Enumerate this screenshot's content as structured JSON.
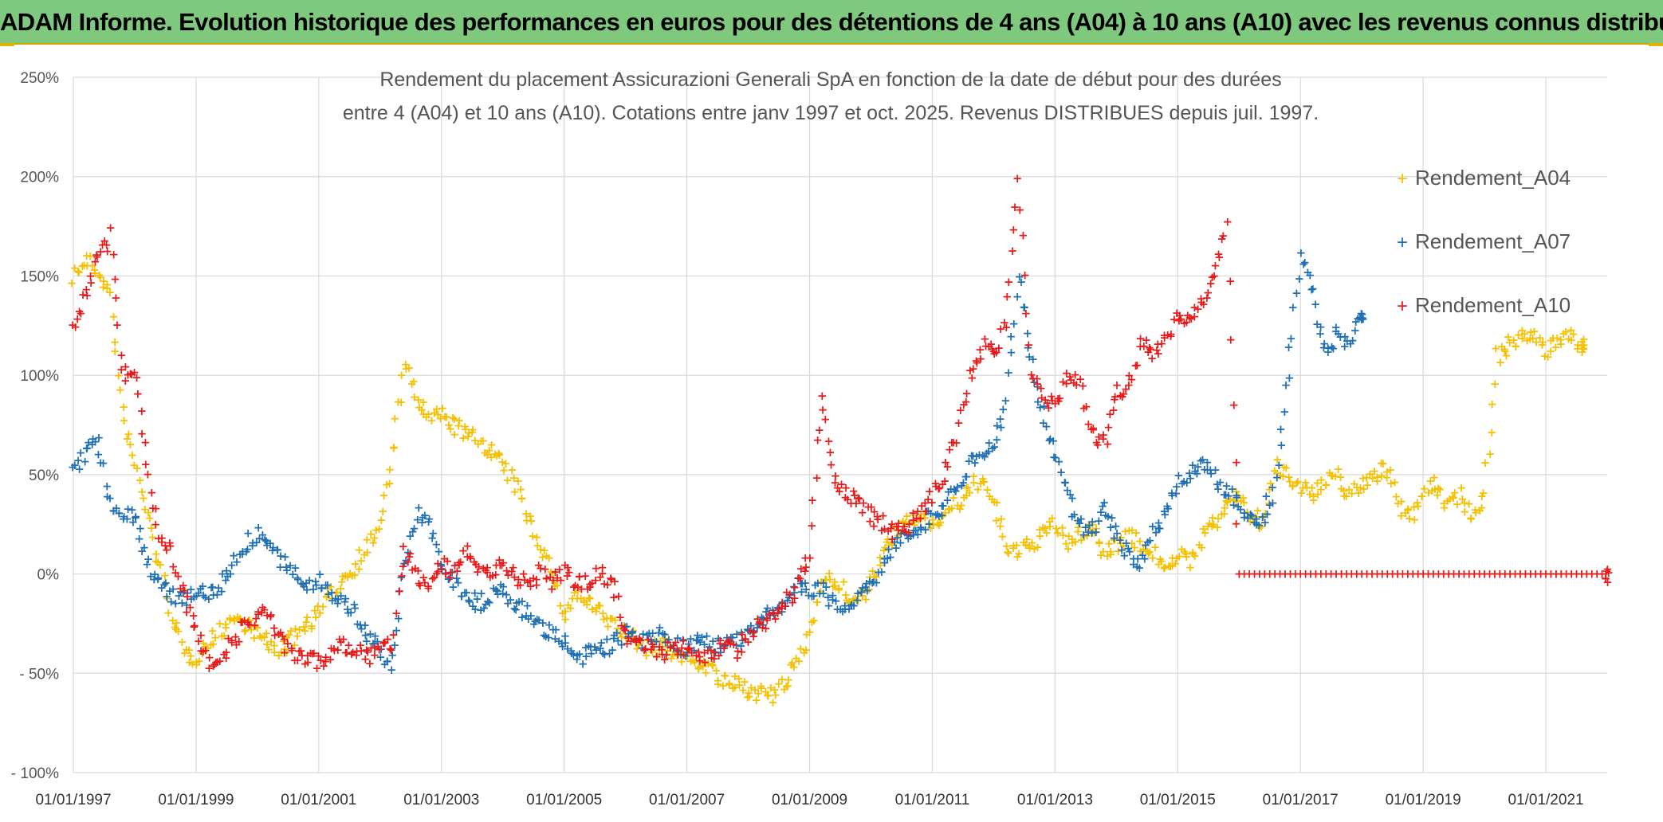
{
  "banner": {
    "title": "ADAM Informe. Evolution historique des performances en euros pour des détentions de 4 ans (A04) à 10 ans (A10) avec les revenus connus distribués"
  },
  "chart_data": {
    "type": "scatter",
    "title_lines": [
      "Rendement du placement Assicurazioni Generali SpA en fonction de la date de début pour des durées",
      "entre 4 (A04) et 10 ans (A10). Cotations entre janv 1997 et oct. 2025. Revenus DISTRIBUES depuis juil. 1997."
    ],
    "xlabel": "",
    "ylabel": "",
    "x_range": [
      1997.0,
      2022.0
    ],
    "y_range": [
      -100,
      250
    ],
    "y_ticks": [
      {
        "value": 250,
        "label": "250%"
      },
      {
        "value": 200,
        "label": "200%"
      },
      {
        "value": 150,
        "label": "150%"
      },
      {
        "value": 100,
        "label": "100%"
      },
      {
        "value": 50,
        "label": "50%"
      },
      {
        "value": 0,
        "label": "0%"
      },
      {
        "value": -50,
        "label": "- 50%"
      },
      {
        "value": -100,
        "label": "- 100%"
      }
    ],
    "x_ticks": [
      {
        "value": 1997,
        "label": "01/01/1997"
      },
      {
        "value": 1999,
        "label": "01/01/1999"
      },
      {
        "value": 2001,
        "label": "01/01/2001"
      },
      {
        "value": 2003,
        "label": "01/01/2003"
      },
      {
        "value": 2005,
        "label": "01/01/2005"
      },
      {
        "value": 2007,
        "label": "01/01/2007"
      },
      {
        "value": 2009,
        "label": "01/01/2009"
      },
      {
        "value": 2011,
        "label": "01/01/2011"
      },
      {
        "value": 2013,
        "label": "01/01/2013"
      },
      {
        "value": 2015,
        "label": "01/01/2015"
      },
      {
        "value": 2017,
        "label": "01/01/2017"
      },
      {
        "value": 2019,
        "label": "01/01/2019"
      },
      {
        "value": 2021,
        "label": "01/01/2021"
      }
    ],
    "grid": true,
    "legend_position": "right",
    "series": [
      {
        "name": "Rendement_A04",
        "color": "#f5c000",
        "x": [
          1997.0,
          1997.2,
          1997.4,
          1997.6,
          1997.8,
          1998.0,
          1998.2,
          1998.4,
          1998.6,
          1998.8,
          1999.0,
          1999.2,
          1999.4,
          1999.6,
          1999.8,
          2000.0,
          2000.2,
          2000.4,
          2000.6,
          2000.8,
          2001.0,
          2001.2,
          2001.4,
          2001.6,
          2001.8,
          2002.0,
          2002.2,
          2002.4,
          2002.6,
          2002.8,
          2003.0,
          2003.2,
          2003.4,
          2003.6,
          2003.8,
          2004.0,
          2004.2,
          2004.4,
          2004.6,
          2004.8,
          2005.0,
          2005.2,
          2005.4,
          2005.6,
          2005.8,
          2006.0,
          2006.2,
          2006.4,
          2006.6,
          2006.8,
          2007.0,
          2007.2,
          2007.4,
          2007.6,
          2007.8,
          2008.0,
          2008.2,
          2008.4,
          2008.6,
          2008.8,
          2009.0,
          2009.2,
          2009.4,
          2009.6,
          2009.8,
          2010.0,
          2010.2,
          2010.4,
          2010.6,
          2010.8,
          2011.0,
          2011.2,
          2011.4,
          2011.6,
          2011.8,
          2012.0,
          2012.2,
          2012.4,
          2012.6,
          2012.8,
          2013.0,
          2013.2,
          2013.4,
          2013.6,
          2013.8,
          2014.0,
          2014.2,
          2014.4,
          2014.6,
          2014.8,
          2015.0,
          2015.2,
          2015.4,
          2015.6,
          2015.8,
          2016.0,
          2016.2,
          2016.4,
          2016.6,
          2016.8,
          2017.0,
          2017.2,
          2017.4,
          2017.6,
          2017.8,
          2018.0,
          2018.2,
          2018.4,
          2018.6,
          2018.8,
          2019.0,
          2019.2,
          2019.4,
          2019.6,
          2019.8,
          2020.0,
          2020.2,
          2020.4,
          2020.6,
          2020.8,
          2021.0,
          2021.2,
          2021.4,
          2021.6
        ],
        "y": [
          150,
          158,
          152,
          140,
          80,
          55,
          30,
          5,
          -20,
          -40,
          -42,
          -35,
          -28,
          -22,
          -25,
          -30,
          -36,
          -38,
          -32,
          -25,
          -20,
          -10,
          -2,
          5,
          15,
          25,
          60,
          105,
          88,
          78,
          80,
          75,
          70,
          68,
          62,
          55,
          45,
          30,
          15,
          0,
          -20,
          -10,
          -15,
          -20,
          -25,
          -30,
          -35,
          -38,
          -36,
          -40,
          -42,
          -44,
          -48,
          -55,
          -56,
          -58,
          -60,
          -62,
          -55,
          -45,
          -30,
          0,
          -5,
          -10,
          -15,
          -5,
          10,
          20,
          25,
          30,
          25,
          30,
          35,
          40,
          50,
          35,
          15,
          10,
          15,
          20,
          25,
          15,
          20,
          25,
          10,
          15,
          20,
          15,
          10,
          5,
          10,
          5,
          20,
          25,
          35,
          40,
          30,
          25,
          55,
          50,
          45,
          40,
          45,
          50,
          40,
          45,
          50,
          55,
          35,
          30,
          40,
          45,
          35,
          40,
          30,
          40,
          110,
          115,
          118,
          120,
          112,
          118,
          120,
          115
        ]
      },
      {
        "name": "Rendement_A07",
        "color": "#1f6fb4",
        "x": [
          1997.0,
          1997.2,
          1997.4,
          1997.6,
          1997.8,
          1998.0,
          1998.2,
          1998.4,
          1998.6,
          1998.8,
          1999.0,
          1999.2,
          1999.4,
          1999.6,
          1999.8,
          2000.0,
          2000.2,
          2000.4,
          2000.6,
          2000.8,
          2001.0,
          2001.2,
          2001.4,
          2001.6,
          2001.8,
          2002.0,
          2002.2,
          2002.4,
          2002.6,
          2002.8,
          2003.0,
          2003.2,
          2003.4,
          2003.6,
          2003.8,
          2004.0,
          2004.2,
          2004.4,
          2004.6,
          2004.8,
          2005.0,
          2005.2,
          2005.4,
          2005.6,
          2005.8,
          2006.0,
          2006.2,
          2006.4,
          2006.6,
          2006.8,
          2007.0,
          2007.2,
          2007.4,
          2007.6,
          2007.8,
          2008.0,
          2008.2,
          2008.4,
          2008.6,
          2008.8,
          2009.0,
          2009.2,
          2009.4,
          2009.6,
          2009.8,
          2010.0,
          2010.2,
          2010.4,
          2010.6,
          2010.8,
          2011.0,
          2011.2,
          2011.4,
          2011.6,
          2011.8,
          2012.0,
          2012.2,
          2012.4,
          2012.6,
          2012.8,
          2013.0,
          2013.2,
          2013.4,
          2013.6,
          2013.8,
          2014.0,
          2014.2,
          2014.4,
          2014.6,
          2014.8,
          2015.0,
          2015.2,
          2015.4,
          2015.6,
          2015.8,
          2016.0,
          2016.2,
          2016.4,
          2016.6,
          2016.8,
          2017.0,
          2017.2,
          2017.4,
          2017.6,
          2017.8,
          2018.0
        ],
        "y": [
          50,
          62,
          68,
          35,
          32,
          30,
          5,
          -5,
          -10,
          -12,
          -8,
          -10,
          -5,
          5,
          15,
          20,
          15,
          5,
          0,
          -5,
          -2,
          -10,
          -15,
          -20,
          -30,
          -40,
          -45,
          5,
          30,
          25,
          5,
          -5,
          -10,
          -15,
          -12,
          -8,
          -15,
          -20,
          -25,
          -30,
          -35,
          -45,
          -40,
          -38,
          -35,
          -30,
          -35,
          -32,
          -30,
          -35,
          -38,
          -32,
          -35,
          -36,
          -34,
          -30,
          -25,
          -20,
          -15,
          -5,
          -10,
          -5,
          -15,
          -20,
          -10,
          -5,
          5,
          15,
          20,
          25,
          30,
          35,
          45,
          55,
          60,
          65,
          90,
          150,
          110,
          80,
          60,
          40,
          25,
          20,
          35,
          20,
          10,
          5,
          20,
          30,
          45,
          50,
          55,
          50,
          40,
          35,
          25,
          30,
          45,
          100,
          160,
          140,
          110,
          120,
          115,
          130
        ]
      },
      {
        "name": "Rendement_A10",
        "color": "#e81a1a",
        "x": [
          1997.0,
          1997.2,
          1997.4,
          1997.6,
          1997.8,
          1998.0,
          1998.2,
          1998.4,
          1998.6,
          1998.8,
          1999.0,
          1999.2,
          1999.4,
          1999.6,
          1999.8,
          2000.0,
          2000.2,
          2000.4,
          2000.6,
          2000.8,
          2001.0,
          2001.2,
          2001.4,
          2001.6,
          2001.8,
          2002.0,
          2002.2,
          2002.4,
          2002.6,
          2002.8,
          2003.0,
          2003.2,
          2003.4,
          2003.6,
          2003.8,
          2004.0,
          2004.2,
          2004.4,
          2004.6,
          2004.8,
          2005.0,
          2005.2,
          2005.4,
          2005.6,
          2005.8,
          2006.0,
          2006.2,
          2006.4,
          2006.6,
          2006.8,
          2007.0,
          2007.2,
          2007.4,
          2007.6,
          2007.8,
          2008.0,
          2008.2,
          2008.4,
          2008.6,
          2008.8,
          2009.0,
          2009.2,
          2009.4,
          2009.6,
          2009.8,
          2010.0,
          2010.2,
          2010.4,
          2010.6,
          2010.8,
          2011.0,
          2011.2,
          2011.4,
          2011.6,
          2011.8,
          2012.0,
          2012.2,
          2012.4,
          2012.6,
          2012.8,
          2013.0,
          2013.2,
          2013.4,
          2013.6,
          2013.8,
          2014.0,
          2014.2,
          2014.4,
          2014.6,
          2014.8,
          2015.0,
          2015.2,
          2015.4,
          2015.6,
          2015.8,
          2016.0,
          2016.5,
          2017.0,
          2017.5,
          2018.0,
          2018.5,
          2019.0,
          2019.5,
          2020.0,
          2020.5,
          2021.0,
          2021.5,
          2022.0
        ],
        "y": [
          125,
          140,
          160,
          170,
          100,
          105,
          55,
          20,
          10,
          -10,
          -30,
          -45,
          -40,
          -35,
          -25,
          -20,
          -22,
          -35,
          -40,
          -42,
          -45,
          -40,
          -35,
          -38,
          -42,
          -40,
          -35,
          10,
          0,
          -5,
          5,
          0,
          10,
          5,
          0,
          5,
          0,
          -5,
          0,
          -5,
          0,
          -5,
          -3,
          0,
          -5,
          -30,
          -35,
          -38,
          -40,
          -36,
          -38,
          -40,
          -42,
          -35,
          -38,
          -30,
          -25,
          -20,
          -15,
          -5,
          10,
          90,
          50,
          40,
          35,
          30,
          25,
          20,
          25,
          30,
          40,
          50,
          70,
          100,
          115,
          110,
          125,
          200,
          100,
          90,
          85,
          100,
          95,
          70,
          65,
          90,
          95,
          115,
          110,
          120,
          130,
          125,
          135,
          150,
          175,
          0,
          0,
          0,
          0,
          0,
          0,
          0,
          0,
          0,
          0,
          0,
          0,
          0
        ]
      }
    ]
  }
}
